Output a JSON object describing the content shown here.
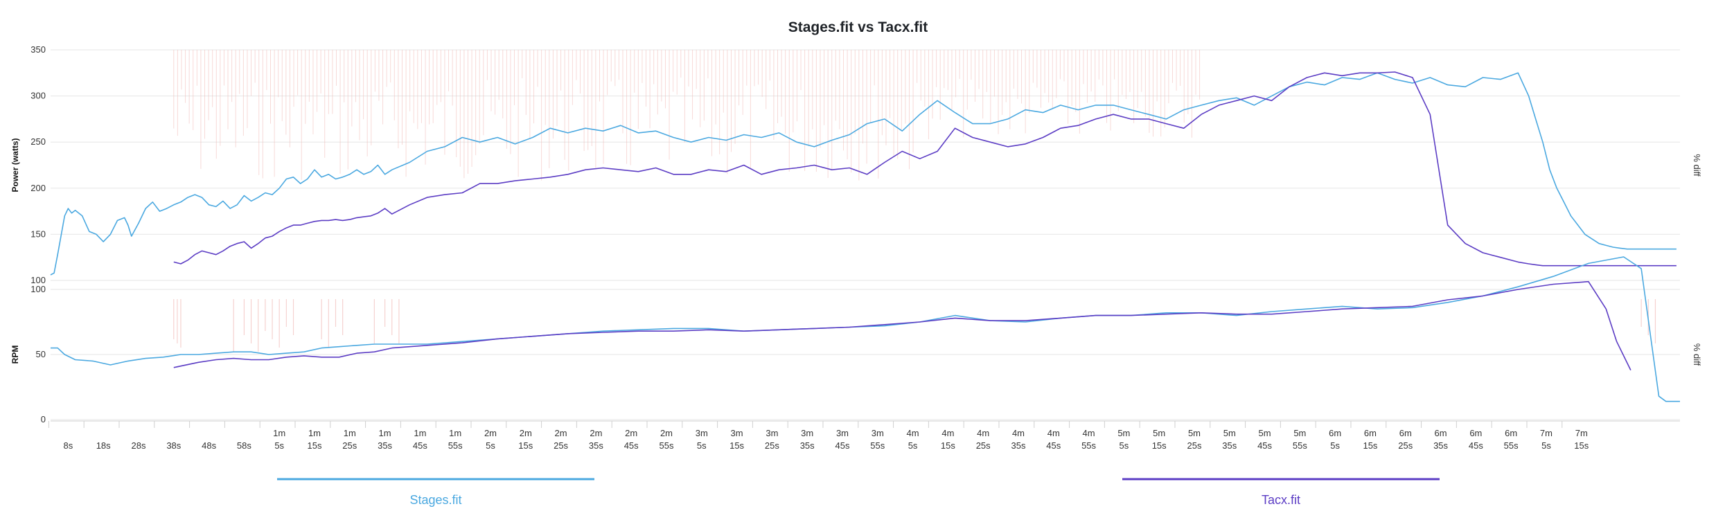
{
  "title": "Stages.fit vs Tacx.fit",
  "colors": {
    "stages": "#4aa8e0",
    "tacx": "#5b3cc4",
    "diff": "#f0b4b0",
    "grid": "#e6e6e6",
    "axis_right": "#c8c8c8"
  },
  "chart_data": [
    {
      "type": "line",
      "ylabel": "Power (watts)",
      "y_right_label": "% diff",
      "ylim": [
        100,
        350
      ],
      "yticks": [
        "100",
        "150",
        "200",
        "250",
        "300",
        "350"
      ],
      "series": [
        {
          "name": "Stages.fit",
          "x": [
            3,
            4,
            5,
            7,
            8,
            9,
            10,
            12,
            14,
            16,
            18,
            20,
            22,
            24,
            25,
            26,
            28,
            30,
            32,
            34,
            36,
            38,
            40,
            42,
            44,
            46,
            48,
            50,
            52,
            54,
            56,
            58,
            60,
            62,
            64,
            66,
            68,
            70,
            72,
            74,
            76,
            78,
            80,
            82,
            84,
            86,
            88,
            90,
            92,
            94,
            96,
            98,
            100,
            105,
            110,
            115,
            120,
            125,
            130,
            135,
            140,
            145,
            150,
            155,
            160,
            165,
            170,
            175,
            180,
            185,
            190,
            195,
            200,
            205,
            210,
            215,
            220,
            225,
            230,
            235,
            240,
            245,
            250,
            255,
            260,
            265,
            270,
            275,
            280,
            285,
            290,
            295,
            300,
            305,
            310,
            315,
            320,
            325,
            330,
            335,
            340,
            345,
            350,
            355,
            360,
            365,
            370,
            375,
            380,
            385,
            390,
            395,
            400,
            405,
            410,
            415,
            420,
            423,
            425,
            427,
            429,
            431,
            433,
            435,
            437,
            439,
            441,
            443,
            445,
            447,
            449,
            451,
            453,
            455,
            457,
            459,
            461,
            463,
            465
          ],
          "values": [
            106,
            108,
            128,
            170,
            178,
            173,
            176,
            170,
            153,
            150,
            142,
            150,
            165,
            168,
            160,
            148,
            162,
            178,
            185,
            175,
            178,
            182,
            185,
            190,
            193,
            190,
            182,
            180,
            186,
            178,
            182,
            192,
            186,
            190,
            195,
            193,
            200,
            210,
            212,
            205,
            210,
            220,
            212,
            215,
            210,
            212,
            215,
            220,
            215,
            218,
            225,
            215,
            220,
            228,
            240,
            245,
            255,
            250,
            255,
            248,
            255,
            265,
            260,
            265,
            262,
            268,
            260,
            262,
            255,
            250,
            255,
            252,
            258,
            255,
            260,
            250,
            245,
            252,
            258,
            270,
            275,
            262,
            280,
            295,
            282,
            270,
            270,
            275,
            285,
            282,
            290,
            285,
            290,
            290,
            285,
            280,
            275,
            285,
            290,
            295,
            298,
            290,
            300,
            310,
            315,
            312,
            320,
            318,
            325,
            318,
            314,
            320,
            312,
            310,
            320,
            318,
            325,
            300,
            275,
            250,
            220,
            200,
            185,
            170,
            160,
            150,
            145,
            140,
            138,
            136,
            135,
            134,
            134,
            134,
            134,
            134,
            134,
            134,
            134
          ]
        },
        {
          "name": "Tacx.fit",
          "x": [
            38,
            40,
            42,
            44,
            46,
            48,
            50,
            52,
            54,
            56,
            58,
            60,
            62,
            64,
            66,
            68,
            70,
            72,
            74,
            76,
            78,
            80,
            82,
            84,
            86,
            88,
            90,
            92,
            94,
            96,
            98,
            100,
            105,
            110,
            115,
            120,
            125,
            130,
            135,
            140,
            145,
            150,
            155,
            160,
            165,
            170,
            175,
            180,
            185,
            190,
            195,
            200,
            205,
            210,
            215,
            220,
            225,
            230,
            235,
            240,
            245,
            250,
            255,
            260,
            265,
            270,
            275,
            280,
            285,
            290,
            295,
            300,
            305,
            310,
            315,
            320,
            325,
            330,
            335,
            340,
            345,
            350,
            355,
            360,
            365,
            370,
            375,
            380,
            385,
            390,
            395,
            400,
            405,
            410,
            415,
            420,
            423,
            425,
            427,
            429,
            431,
            433,
            435,
            437,
            439,
            441,
            443,
            445,
            447,
            449,
            451,
            453,
            455,
            457,
            459,
            461,
            463,
            465
          ],
          "values": [
            120,
            118,
            122,
            128,
            132,
            130,
            128,
            132,
            137,
            140,
            142,
            135,
            140,
            146,
            148,
            153,
            157,
            160,
            160,
            162,
            164,
            165,
            165,
            166,
            165,
            166,
            168,
            169,
            170,
            173,
            178,
            172,
            182,
            190,
            193,
            195,
            205,
            205,
            208,
            210,
            212,
            215,
            220,
            222,
            220,
            218,
            222,
            215,
            215,
            220,
            218,
            225,
            215,
            220,
            222,
            225,
            220,
            222,
            215,
            228,
            240,
            232,
            240,
            265,
            255,
            250,
            245,
            248,
            255,
            265,
            268,
            275,
            280,
            275,
            275,
            270,
            265,
            280,
            290,
            295,
            300,
            295,
            310,
            320,
            325,
            322,
            325,
            325,
            326,
            320,
            280,
            160,
            140,
            130,
            125,
            120,
            118,
            117,
            116,
            116,
            116,
            116,
            116,
            116,
            116,
            116,
            116,
            116,
            116,
            116,
            116,
            116,
            116,
            116,
            116,
            116,
            116,
            116
          ]
        },
        {
          "name": "% diff",
          "x": [],
          "values": []
        }
      ]
    },
    {
      "type": "line",
      "ylabel": "RPM",
      "y_right_label": "% diff",
      "ylim": [
        0,
        100
      ],
      "yticks": [
        "0",
        "50",
        "100"
      ],
      "series": [
        {
          "name": "Stages.fit",
          "x": [
            3,
            5,
            7,
            10,
            15,
            20,
            25,
            30,
            35,
            40,
            45,
            50,
            55,
            60,
            65,
            70,
            75,
            80,
            85,
            90,
            95,
            100,
            110,
            120,
            130,
            140,
            150,
            160,
            170,
            180,
            190,
            200,
            210,
            220,
            230,
            240,
            250,
            260,
            270,
            280,
            290,
            300,
            310,
            320,
            330,
            340,
            350,
            360,
            370,
            380,
            390,
            400,
            410,
            420,
            430,
            440,
            450,
            455,
            460,
            462,
            464,
            466
          ],
          "values": [
            55,
            55,
            50,
            46,
            45,
            42,
            45,
            47,
            48,
            50,
            50,
            51,
            52,
            52,
            50,
            51,
            52,
            55,
            56,
            57,
            58,
            58,
            58,
            60,
            62,
            64,
            66,
            68,
            69,
            70,
            70,
            68,
            69,
            70,
            71,
            72,
            75,
            80,
            76,
            75,
            78,
            80,
            80,
            82,
            82,
            80,
            83,
            85,
            87,
            85,
            86,
            90,
            95,
            102,
            110,
            120,
            125,
            116,
            18,
            14,
            14,
            14
          ]
        },
        {
          "name": "Tacx.fit",
          "x": [
            38,
            45,
            50,
            55,
            60,
            65,
            70,
            75,
            80,
            85,
            90,
            95,
            100,
            110,
            120,
            130,
            140,
            150,
            160,
            170,
            180,
            190,
            200,
            210,
            220,
            230,
            240,
            250,
            260,
            270,
            280,
            290,
            300,
            310,
            320,
            330,
            340,
            350,
            360,
            370,
            380,
            390,
            400,
            410,
            420,
            430,
            440,
            445,
            448,
            452
          ],
          "values": [
            40,
            44,
            46,
            47,
            46,
            46,
            48,
            49,
            48,
            48,
            51,
            52,
            55,
            57,
            59,
            62,
            64,
            66,
            67,
            68,
            68,
            69,
            68,
            69,
            70,
            71,
            73,
            75,
            78,
            76,
            76,
            78,
            80,
            80,
            81,
            82,
            81,
            81,
            83,
            85,
            86,
            87,
            92,
            95,
            100,
            104,
            106,
            85,
            60,
            38
          ]
        }
      ]
    }
  ],
  "x_ticks": [
    [
      "",
      "8s"
    ],
    [
      "",
      "18s"
    ],
    [
      "",
      "28s"
    ],
    [
      "",
      "38s"
    ],
    [
      "",
      "48s"
    ],
    [
      "",
      "58s"
    ],
    [
      "1m",
      "5s"
    ],
    [
      "1m",
      "15s"
    ],
    [
      "1m",
      "25s"
    ],
    [
      "1m",
      "35s"
    ],
    [
      "1m",
      "45s"
    ],
    [
      "1m",
      "55s"
    ],
    [
      "2m",
      "5s"
    ],
    [
      "2m",
      "15s"
    ],
    [
      "2m",
      "25s"
    ],
    [
      "2m",
      "35s"
    ],
    [
      "2m",
      "45s"
    ],
    [
      "2m",
      "55s"
    ],
    [
      "3m",
      "5s"
    ],
    [
      "3m",
      "15s"
    ],
    [
      "3m",
      "25s"
    ],
    [
      "3m",
      "35s"
    ],
    [
      "3m",
      "45s"
    ],
    [
      "3m",
      "55s"
    ],
    [
      "4m",
      "5s"
    ],
    [
      "4m",
      "15s"
    ],
    [
      "4m",
      "25s"
    ],
    [
      "4m",
      "35s"
    ],
    [
      "4m",
      "45s"
    ],
    [
      "4m",
      "55s"
    ],
    [
      "5m",
      "5s"
    ],
    [
      "5m",
      "15s"
    ],
    [
      "5m",
      "25s"
    ],
    [
      "5m",
      "35s"
    ],
    [
      "5m",
      "45s"
    ],
    [
      "5m",
      "55s"
    ],
    [
      "6m",
      "5s"
    ],
    [
      "6m",
      "15s"
    ],
    [
      "6m",
      "25s"
    ],
    [
      "6m",
      "35s"
    ],
    [
      "6m",
      "45s"
    ],
    [
      "6m",
      "55s"
    ],
    [
      "7m",
      "5s"
    ],
    [
      "7m",
      "15s"
    ]
  ],
  "legend": [
    {
      "label": "Stages.fit",
      "color": "#4aa8e0"
    },
    {
      "label": "Tacx.fit",
      "color": "#5b3cc4"
    }
  ]
}
